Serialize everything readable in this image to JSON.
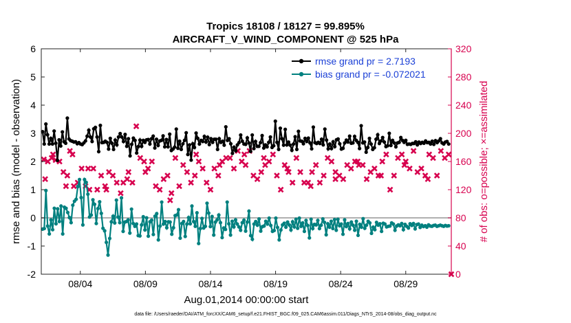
{
  "chart_data": {
    "type": "line",
    "title": "Tropics 18108 / 18127 = 99.895%",
    "subtitle": "AIRCRAFT_V_WIND_COMPONENT @ 525 hPa",
    "xlabel": "Aug.01,2014 00:00:00 start",
    "ylabel_left": "rmse and bias (model - observation)",
    "ylabel_right": "# of obs: o=possible; ×=assimilated",
    "xlim": [
      0,
      31.5
    ],
    "ylim_left": [
      -2,
      6
    ],
    "ylim_right": [
      0,
      320
    ],
    "x_ticks": [
      {
        "x": 3,
        "label": "08/04"
      },
      {
        "x": 8,
        "label": "08/09"
      },
      {
        "x": 13,
        "label": "08/14"
      },
      {
        "x": 18,
        "label": "08/19"
      },
      {
        "x": 23,
        "label": "08/24"
      },
      {
        "x": 28,
        "label": "08/29"
      }
    ],
    "y_ticks_left": [
      "-2",
      "-1",
      "0",
      "1",
      "2",
      "3",
      "4",
      "5",
      "6"
    ],
    "y_ticks_right": [
      "0",
      "40",
      "80",
      "120",
      "160",
      "200",
      "240",
      "280",
      "320"
    ],
    "legend_location": "top-right",
    "colors": {
      "rmse": "#000000",
      "bias": "#00807f",
      "obs": "#d7004e",
      "zero_line": "#b0b0b0",
      "right_axis": "#d7004e"
    },
    "series": [
      {
        "name": "rmse grand pr = 2.7193",
        "axis": "left",
        "values": [
          3.06,
          2.62,
          3.33,
          2.95,
          2.62,
          2.82,
          2.62,
          3.08,
          2.65,
          2.04,
          2.77,
          2.55,
          3.05,
          2.7,
          2.65,
          3.54,
          2.8,
          2.74,
          2.72,
          2.69,
          2.7,
          2.63,
          2.67,
          2.62,
          2.6,
          2.66,
          2.73,
          2.9,
          3.11,
          2.87,
          2.71,
          3.16,
          3.21,
          2.87,
          2.35,
          3.28,
          2.67,
          2.68,
          2.72,
          2.68,
          2.44,
          2.82,
          2.65,
          2.43,
          2.76,
          2.59,
          2.87,
          2.99,
          2.87,
          2.71,
          2.96,
          2.54,
          2.81,
          2.2,
          2.61,
          2.83,
          2.75,
          2.3,
          2.53,
          2.76,
          2.54,
          2.75,
          2.68,
          2.77,
          2.78,
          2.62,
          2.81,
          2.9,
          2.48,
          2.79,
          2.57,
          2.73,
          2.75,
          2.91,
          2.52,
          2.78,
          2.52,
          2.97,
          2.39,
          2.44,
          2.51,
          3.15,
          2.47,
          2.72,
          2.43,
          2.63,
          2.75,
          3.02,
          2.25,
          2.59,
          2.05,
          2.63,
          2.5,
          3.01,
          2.82,
          2.62,
          2.75,
          2.71,
          2.89,
          2.69,
          2.86,
          2.6,
          2.81,
          2.68,
          2.79,
          2.79,
          2.43,
          2.81,
          2.68,
          2.72,
          2.58,
          3.23,
          2.75,
          2.81,
          2.63,
          2.29,
          2.51,
          2.38,
          2.59,
          2.67,
          2.94,
          2.72,
          2.62,
          2.61,
          2.84,
          2.66,
          2.36,
          2.94,
          2.46,
          2.71,
          2.54,
          2.54,
          2.67,
          2.92,
          2.48,
          2.59,
          2.52,
          2.68,
          2.87,
          2.5,
          2.56,
          3.43,
          2.68,
          2.43,
          3.18,
          2.81,
          2.58,
          3.14,
          2.59,
          2.69,
          2.58,
          2.4,
          2.62,
          2.88,
          2.43,
          3.07,
          2.73,
          2.72,
          2.63,
          2.82,
          2.71,
          2.83,
          2.66,
          2.45,
          3.22,
          2.67,
          2.64,
          2.68,
          2.64,
          2.79,
          2.59,
          3.15,
          2.76,
          2.45,
          2.62,
          2.46,
          2.7,
          2.53,
          2.77,
          2.8,
          2.63,
          2.44,
          2.47,
          2.66,
          2.76,
          2.69,
          2.9,
          2.65,
          2.66,
          2.89,
          2.75,
          2.68,
          2.46,
          3.27,
          2.66,
          2.69,
          2.33,
          2.5,
          2.82,
          2.62,
          2.43,
          2.49,
          2.79,
          2.95,
          2.64,
          2.73,
          2.85,
          2.69,
          2.53,
          2.56,
          3.0,
          2.57,
          2.75,
          2.66,
          2.52,
          2.66,
          2.68,
          2.85,
          2.75,
          2.68,
          2.75,
          2.61,
          2.62,
          2.61,
          2.64,
          2.64,
          2.7,
          2.59,
          2.69,
          2.64,
          2.68,
          2.65,
          2.73,
          2.67,
          2.68,
          2.62,
          2.72,
          2.61,
          2.74,
          2.67,
          2.73,
          2.81,
          2.66,
          2.62,
          2.69,
          2.71,
          2.62
        ]
      },
      {
        "name": "bias grand pr = -0.072021",
        "axis": "left",
        "values": [
          -0.4,
          -0.38,
          0.97,
          -0.29,
          -0.57,
          -0.07,
          -0.42,
          0.34,
          -0.21,
          0.32,
          -0.13,
          0.42,
          -0.57,
          0.38,
          0.34,
          0.19,
          0.01,
          -0.17,
          0.45,
          0.59,
          0.66,
          1.11,
          1.36,
          0.72,
          -0.25,
          1.36,
          1.26,
          0.84,
          0.03,
          0.1,
          0.64,
          0.48,
          -0.2,
          0.33,
          0.57,
          0.16,
          -0.37,
          -0.46,
          -0.87,
          -1.32,
          -0.73,
          -0.14,
          0.06,
          -0.18,
          0.63,
          0.03,
          -0.17,
          0.71,
          -0.48,
          -0.15,
          -0.13,
          -0.07,
          -0.54,
          0.31,
          -0.2,
          -0.3,
          -0.22,
          -0.63,
          -0.64,
          -0.25,
          0.04,
          -0.43,
          0.0,
          -0.65,
          -0.14,
          -0.08,
          -0.59,
          0.06,
          0.15,
          -0.78,
          -0.29,
          0.56,
          -0.22,
          -0.13,
          -0.35,
          -0.14,
          -0.15,
          -0.58,
          -0.35,
          0.08,
          0.1,
          0.29,
          -0.72,
          -0.2,
          -0.13,
          -0.66,
          -0.22,
          0.01,
          -0.21,
          0.42,
          -0.13,
          -0.3,
          0.18,
          -0.91,
          -0.38,
          -0.02,
          -0.36,
          -0.3,
          0.52,
          0.17,
          -0.31,
          0.05,
          -0.61,
          -0.15,
          -0.07,
          0.1,
          -0.17,
          -0.7,
          -0.36,
          -0.41,
          0.56,
          -0.21,
          -0.61,
          -0.12,
          -0.32,
          -0.07,
          -0.22,
          -0.32,
          -0.44,
          -0.17,
          -0.08,
          -0.47,
          -0.15,
          0.24,
          -0.63,
          -0.76,
          -0.22,
          -0.13,
          -0.26,
          -0.04,
          -0.47,
          -0.31,
          -0.29,
          -0.12,
          -0.22,
          -0.01,
          -0.27,
          -0.48,
          -0.45,
          -0.01,
          -0.34,
          -0.78,
          -0.43,
          -0.25,
          -0.19,
          -0.33,
          -0.15,
          -0.25,
          -0.43,
          -0.14,
          -0.32,
          -0.05,
          -0.37,
          -0.01,
          -0.3,
          -0.18,
          -0.48,
          -0.09,
          -0.27,
          -0.71,
          -0.05,
          -0.38,
          -0.23,
          -0.25,
          -0.09,
          -0.38,
          -0.26,
          -0.04,
          -0.16,
          -0.6,
          -0.21,
          -0.33,
          -0.12,
          -0.38,
          -0.06,
          -0.44,
          -0.05,
          -0.28,
          -0.22,
          -0.58,
          -0.07,
          -0.31,
          -0.2,
          -0.39,
          -0.15,
          -0.26,
          -0.44,
          -0.12,
          -0.62,
          -0.23,
          -0.33,
          -0.03,
          -0.37,
          -0.26,
          -0.12,
          -0.18,
          -0.55,
          -0.33,
          -0.42,
          -0.16,
          -0.26,
          -0.21,
          -0.48,
          -0.19,
          -0.22,
          -0.32,
          -0.3,
          -0.29,
          -0.18,
          -0.22,
          -0.44,
          -0.29,
          -0.25,
          -0.28,
          -0.2,
          -0.42,
          -0.23,
          -0.3,
          -0.36,
          -0.21,
          -0.27,
          -0.2,
          -0.39,
          -0.24,
          -0.22,
          -0.34,
          -0.26,
          -0.31,
          -0.28,
          -0.33,
          -0.25,
          -0.29,
          -0.3,
          -0.27,
          -0.26,
          -0.3,
          -0.28,
          -0.26,
          -0.28,
          -0.3,
          -0.27,
          -0.29,
          -0.28
        ]
      }
    ],
    "obs_points_assimilated": [
      [
        0.2,
        163
      ],
      [
        0.5,
        160
      ],
      [
        0.8,
        165
      ],
      [
        1.1,
        162
      ],
      [
        1.4,
        160
      ],
      [
        1.7,
        145
      ],
      [
        2.0,
        140
      ],
      [
        2.2,
        175
      ],
      [
        1.9,
        125
      ],
      [
        2.5,
        125
      ],
      [
        2.8,
        130
      ],
      [
        3.1,
        150
      ],
      [
        3.4,
        125
      ],
      [
        3.7,
        120
      ],
      [
        4.0,
        150
      ],
      [
        4.3,
        120
      ],
      [
        4.6,
        140
      ],
      [
        4.9,
        125
      ],
      [
        5.2,
        145
      ],
      [
        5.5,
        140
      ],
      [
        5.8,
        130
      ],
      [
        6.1,
        115
      ],
      [
        6.3,
        130
      ],
      [
        6.7,
        145
      ],
      [
        7.0,
        130
      ],
      [
        7.3,
        210
      ],
      [
        7.6,
        165
      ],
      [
        7.9,
        160
      ],
      [
        8.2,
        150
      ],
      [
        8.5,
        160
      ],
      [
        8.8,
        125
      ],
      [
        9.1,
        120
      ],
      [
        9.4,
        135
      ],
      [
        9.7,
        140
      ],
      [
        10.0,
        115
      ],
      [
        10.3,
        165
      ],
      [
        10.6,
        125
      ],
      [
        10.9,
        155
      ],
      [
        11.2,
        145
      ],
      [
        11.5,
        130
      ],
      [
        11.8,
        140
      ],
      [
        12.1,
        160
      ],
      [
        12.4,
        150
      ],
      [
        12.7,
        130
      ],
      [
        13.0,
        120
      ],
      [
        13.3,
        150
      ],
      [
        13.6,
        140
      ],
      [
        13.9,
        160
      ],
      [
        14.2,
        165
      ],
      [
        14.5,
        165
      ],
      [
        14.8,
        150
      ],
      [
        15.1,
        175
      ],
      [
        15.4,
        160
      ],
      [
        15.7,
        155
      ],
      [
        16.0,
        175
      ],
      [
        16.3,
        140
      ],
      [
        16.6,
        135
      ],
      [
        16.9,
        145
      ],
      [
        17.2,
        155
      ],
      [
        17.5,
        160
      ],
      [
        17.8,
        170
      ],
      [
        18.1,
        140
      ],
      [
        18.4,
        120
      ],
      [
        18.7,
        155
      ],
      [
        19.0,
        145
      ],
      [
        19.3,
        130
      ],
      [
        19.6,
        165
      ],
      [
        19.9,
        145
      ],
      [
        20.2,
        130
      ],
      [
        20.5,
        130
      ],
      [
        20.8,
        145
      ],
      [
        21.1,
        155
      ],
      [
        21.4,
        130
      ],
      [
        21.7,
        140
      ],
      [
        22.0,
        165
      ],
      [
        22.3,
        160
      ],
      [
        22.6,
        135
      ],
      [
        22.9,
        140
      ],
      [
        23.2,
        135
      ],
      [
        23.5,
        155
      ],
      [
        23.8,
        150
      ],
      [
        24.1,
        160
      ],
      [
        24.4,
        155
      ],
      [
        24.7,
        155
      ],
      [
        25.0,
        135
      ],
      [
        25.3,
        145
      ],
      [
        25.6,
        150
      ],
      [
        25.9,
        140
      ],
      [
        26.2,
        160
      ],
      [
        26.5,
        170
      ],
      [
        26.8,
        120
      ],
      [
        27.1,
        140
      ],
      [
        27.4,
        165
      ],
      [
        27.7,
        170
      ],
      [
        28.0,
        160
      ],
      [
        28.3,
        150
      ],
      [
        28.6,
        175
      ],
      [
        28.9,
        145
      ],
      [
        29.2,
        150
      ],
      [
        29.5,
        140
      ],
      [
        29.8,
        170
      ],
      [
        30.1,
        165
      ],
      [
        30.4,
        140
      ],
      [
        30.7,
        175
      ],
      [
        31.0,
        165
      ],
      [
        31.3,
        170
      ]
    ],
    "obs_points_extra": [
      [
        0.3,
        135
      ],
      [
        0.9,
        170
      ],
      [
        2.4,
        170
      ],
      [
        3.6,
        150
      ],
      [
        5.0,
        120
      ],
      [
        6.6,
        135
      ],
      [
        8.0,
        145
      ],
      [
        9.9,
        105
      ],
      [
        11.9,
        170
      ],
      [
        13.7,
        155
      ],
      [
        15.6,
        170
      ],
      [
        17.1,
        165
      ],
      [
        18.9,
        150
      ],
      [
        20.7,
        125
      ],
      [
        22.6,
        145
      ],
      [
        24.3,
        160
      ],
      [
        26.1,
        140
      ],
      [
        27.9,
        155
      ],
      [
        29.7,
        135
      ],
      [
        31.5,
        0
      ]
    ],
    "legend": [
      {
        "label": "rmse grand pr = 2.7193"
      },
      {
        "label": "bias grand pr = -0.072021"
      }
    ],
    "footer": "data file: /Users/raeder/DAI/ATM_forcXX/CAM6_setup/f.e21.FHIST_BGC.f09_025.CAM6assim.011/Diags_NTrS_2014-08/obs_diag_output.nc"
  }
}
